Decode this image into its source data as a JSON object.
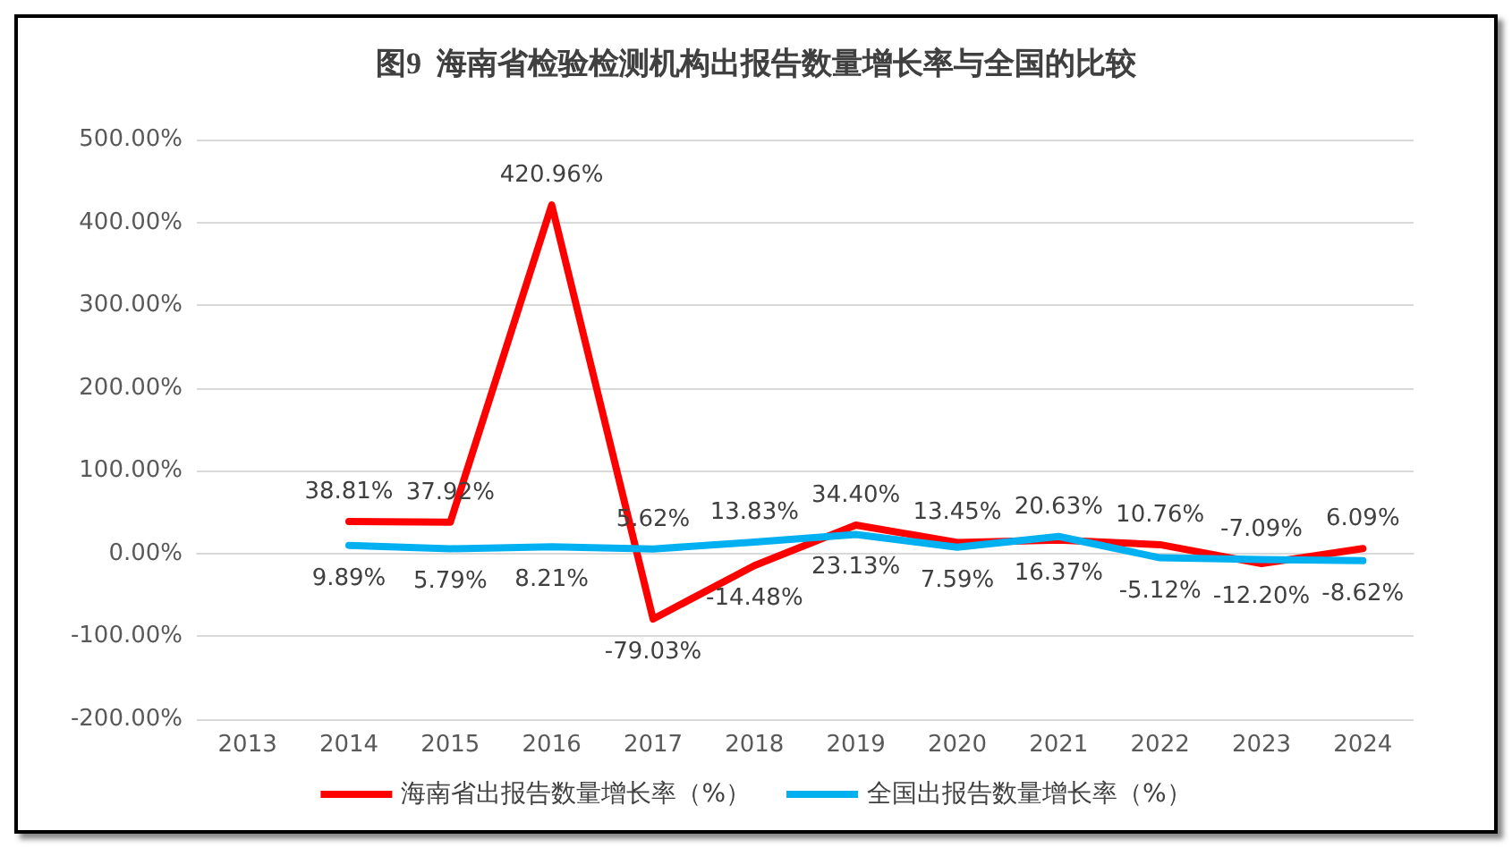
{
  "chart_data": {
    "type": "line",
    "title": "图9  海南省检验检测机构出报告数量增长率与全国的比较",
    "categories": [
      "2013",
      "2014",
      "2015",
      "2016",
      "2017",
      "2018",
      "2019",
      "2020",
      "2021",
      "2022",
      "2023",
      "2024"
    ],
    "series": [
      {
        "name": "海南省出报告数量增长率（%）",
        "color": "#ff0000",
        "values": [
          null,
          38.81,
          37.92,
          420.96,
          -79.03,
          -14.48,
          34.4,
          13.45,
          16.37,
          10.76,
          -12.2,
          6.09
        ],
        "value_labels": [
          null,
          "38.81%",
          "37.92%",
          "420.96%",
          "-79.03%",
          "-14.48%",
          "34.40%",
          "13.45%",
          "16.37%",
          "10.76%",
          "-12.20%",
          "6.09%"
        ]
      },
      {
        "name": "全国出报告数量增长率（%）",
        "color": "#00b0f0",
        "values": [
          null,
          9.89,
          5.79,
          8.21,
          5.62,
          13.83,
          23.13,
          7.59,
          20.63,
          -5.12,
          -7.09,
          -8.62
        ],
        "value_labels": [
          null,
          "9.89%",
          "5.79%",
          "8.21%",
          "5.62%",
          "13.83%",
          "23.13%",
          "7.59%",
          "20.63%",
          "-5.12%",
          "-7.09%",
          "-8.62%"
        ]
      }
    ],
    "ylim": [
      -200,
      500
    ],
    "yticks": [
      {
        "value": -200,
        "label": "-200.00%"
      },
      {
        "value": -100,
        "label": "-100.00%"
      },
      {
        "value": 0,
        "label": "0.00%"
      },
      {
        "value": 100,
        "label": "100.00%"
      },
      {
        "value": 200,
        "label": "200.00%"
      },
      {
        "value": 300,
        "label": "300.00%"
      },
      {
        "value": 400,
        "label": "400.00%"
      },
      {
        "value": 500,
        "label": "500.00%"
      }
    ],
    "grid": "y",
    "legend": "bottom",
    "marker": "none",
    "line_style": "solid"
  }
}
